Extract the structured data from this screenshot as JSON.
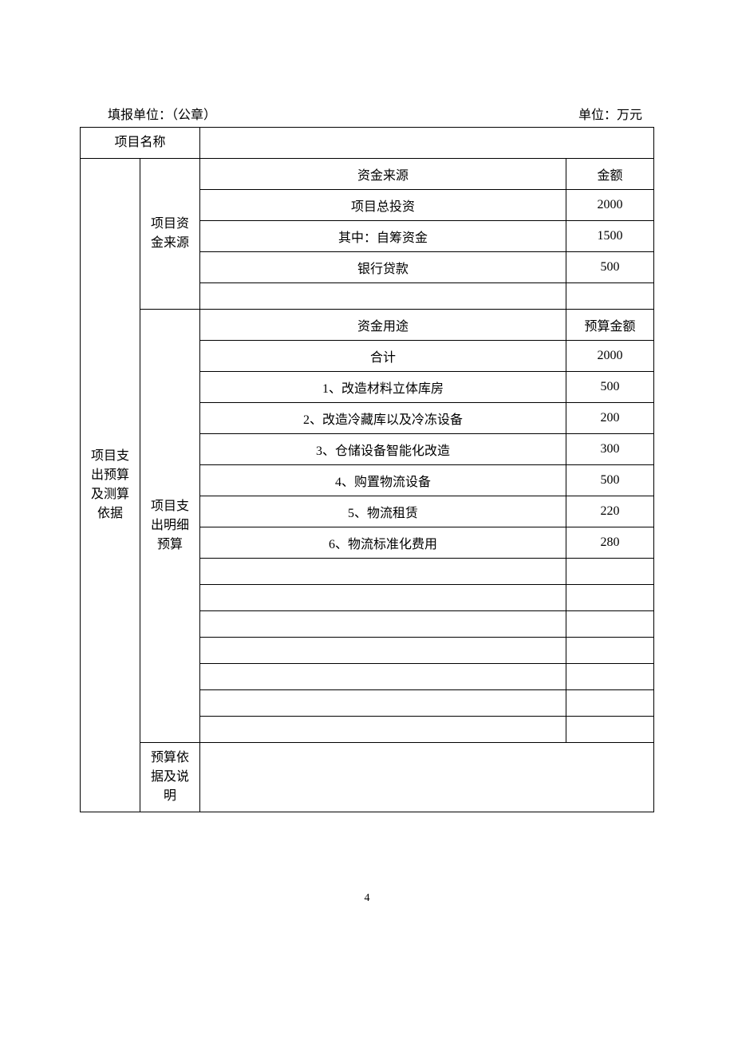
{
  "header": {
    "left": "填报单位：（公章）",
    "right": "单位：万元"
  },
  "table": {
    "row_project_name_label": "项目名称",
    "row_project_name_value": "",
    "section_label": "项目支出预算及测算依据",
    "funding_source": {
      "label": "项目资金来源",
      "header_col1": "资金来源",
      "header_col2": "金额",
      "rows": [
        {
          "label": "项目总投资",
          "amount": "2000"
        },
        {
          "label": "其中：自筹资金",
          "amount": "1500"
        },
        {
          "label": "银行贷款",
          "amount": "500"
        },
        {
          "label": "",
          "amount": ""
        }
      ]
    },
    "expenditure": {
      "label": "项目支出明细预算",
      "header_col1": "资金用途",
      "header_col2": "预算金额",
      "total_label": "合计",
      "total_amount": "2000",
      "rows": [
        {
          "label": "1、改造材料立体库房",
          "amount": "500"
        },
        {
          "label": "2、改造冷藏库以及冷冻设备",
          "amount": "200"
        },
        {
          "label": "3、仓储设备智能化改造",
          "amount": "300"
        },
        {
          "label": "4、购置物流设备",
          "amount": "500"
        },
        {
          "label": "5、物流租赁",
          "amount": "220"
        },
        {
          "label": "6、物流标准化费用",
          "amount": "280"
        },
        {
          "label": "",
          "amount": ""
        },
        {
          "label": "",
          "amount": ""
        },
        {
          "label": "",
          "amount": ""
        },
        {
          "label": "",
          "amount": ""
        },
        {
          "label": "",
          "amount": ""
        },
        {
          "label": "",
          "amount": ""
        },
        {
          "label": "",
          "amount": ""
        }
      ]
    },
    "basis": {
      "label": "预算依据及说明",
      "content": ""
    }
  },
  "page_number": "4",
  "styling": {
    "border_color": "#000000",
    "background_color": "#ffffff",
    "text_color": "#000000",
    "font_family": "SimSun",
    "base_font_size": 16,
    "col1_width": 75,
    "col2_width": 75,
    "amount_col_width": 110
  }
}
